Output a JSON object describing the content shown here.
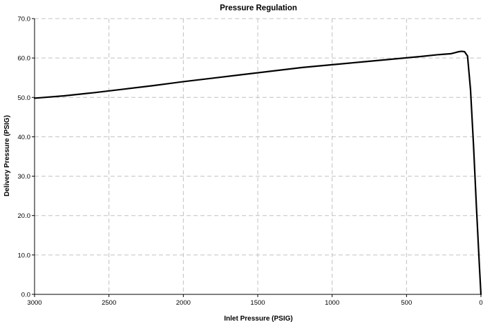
{
  "chart_data": {
    "type": "line",
    "title": "Pressure Regulation",
    "xlabel": "Inlet Pressure (PSIG)",
    "ylabel": "Delivery Pressure (PSIG)",
    "x_reversed": true,
    "xlim": [
      3000,
      0
    ],
    "ylim": [
      0.0,
      70.0
    ],
    "x_ticks": [
      "3000",
      "2500",
      "2000",
      "1500",
      "1000",
      "500",
      "0"
    ],
    "y_ticks": [
      "0.0",
      "10.0",
      "20.0",
      "30.0",
      "40.0",
      "50.0",
      "60.0",
      "70.0"
    ],
    "grid": "dashed",
    "legend": "none",
    "colors": {
      "line": "#000000",
      "grid": "#c0c0c0",
      "axis": "#000000",
      "background": "#ffffff"
    },
    "series": [
      {
        "x": [
          3000,
          2800,
          2600,
          2400,
          2200,
          2000,
          1800,
          1600,
          1400,
          1200,
          1000,
          800,
          600,
          400,
          300,
          200,
          170,
          150,
          130,
          110,
          90,
          70,
          50,
          30,
          10,
          0
        ],
        "y": [
          49.8,
          50.4,
          51.2,
          52.1,
          53.0,
          54.0,
          54.9,
          55.8,
          56.7,
          57.6,
          58.3,
          59.0,
          59.7,
          60.4,
          60.8,
          61.1,
          61.4,
          61.6,
          61.7,
          61.6,
          60.5,
          52.0,
          38.0,
          22.0,
          7.0,
          0.0
        ]
      }
    ]
  }
}
